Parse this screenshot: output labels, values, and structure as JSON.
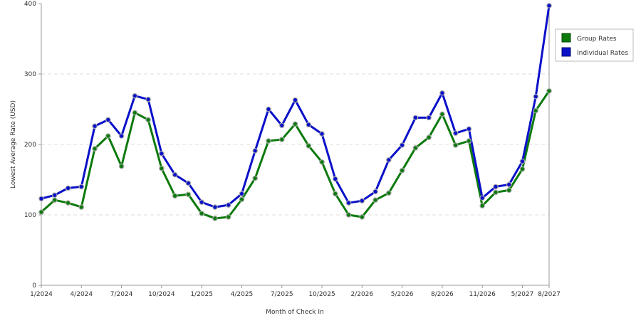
{
  "chart_data": {
    "type": "line",
    "title": "",
    "xlabel": "Month of Check In",
    "ylabel": "Lowest Average Rate (USD)",
    "ylim": [
      0,
      400
    ],
    "yticks": [
      "0",
      "100",
      "200",
      "300",
      "400"
    ],
    "xticks": [
      {
        "index": 0,
        "label": "1/2024"
      },
      {
        "index": 3,
        "label": "4/2024"
      },
      {
        "index": 6,
        "label": "7/2024"
      },
      {
        "index": 9,
        "label": "10/2024"
      },
      {
        "index": 12,
        "label": "1/2025"
      },
      {
        "index": 15,
        "label": "4/2025"
      },
      {
        "index": 18,
        "label": "7/2025"
      },
      {
        "index": 21,
        "label": "10/2025"
      },
      {
        "index": 24,
        "label": "2/2026"
      },
      {
        "index": 27,
        "label": "5/2026"
      },
      {
        "index": 30,
        "label": "8/2026"
      },
      {
        "index": 33,
        "label": "11/2026"
      },
      {
        "index": 36,
        "label": "5/2027"
      },
      {
        "index": 38,
        "label": "8/2027"
      }
    ],
    "grid": true,
    "legend_placement": "top-right",
    "series": [
      {
        "name": "Group Rates",
        "color": "#0c7a0c",
        "values": [
          104,
          121,
          117,
          111,
          194,
          212,
          169,
          245,
          235,
          166,
          127,
          129,
          102,
          95,
          97,
          122,
          152,
          205,
          207,
          229,
          198,
          175,
          130,
          100,
          97,
          121,
          131,
          163,
          195,
          210,
          243,
          199,
          205,
          113,
          132,
          135,
          165,
          248,
          276
        ]
      },
      {
        "name": "Individual Rates",
        "color": "#0a10c8",
        "values": [
          123,
          128,
          138,
          140,
          226,
          235,
          212,
          269,
          264,
          187,
          157,
          145,
          118,
          111,
          114,
          130,
          191,
          250,
          227,
          263,
          228,
          215,
          151,
          117,
          120,
          133,
          178,
          199,
          238,
          238,
          273,
          216,
          222,
          124,
          140,
          143,
          176,
          268,
          397
        ]
      }
    ]
  }
}
